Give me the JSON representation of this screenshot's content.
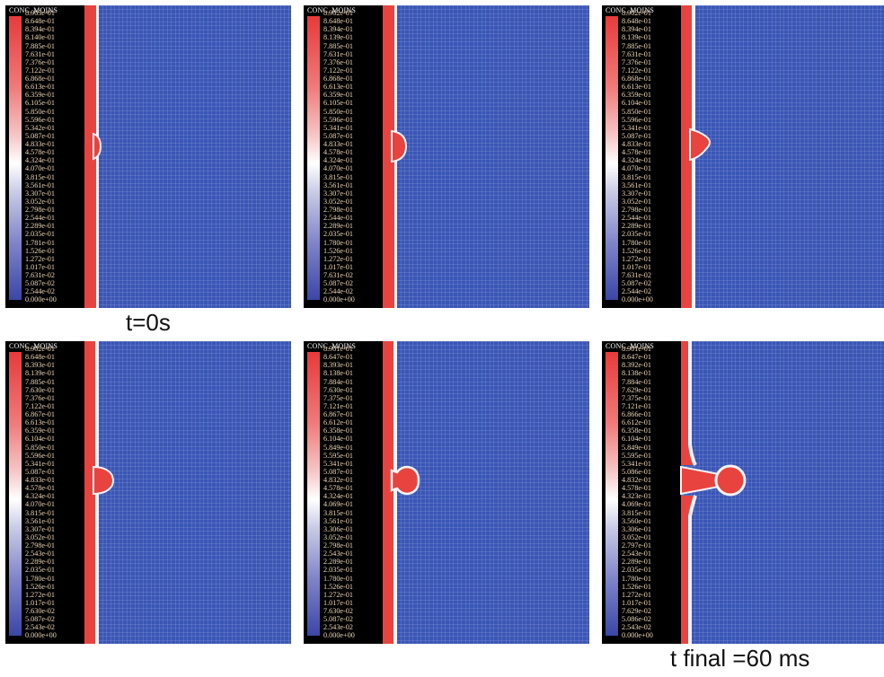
{
  "captions": {
    "start": "t=0s",
    "end": "t final =60 ms"
  },
  "colors": {
    "field_blue": "#3a56b5",
    "front_red": "#e8433e",
    "grid_line": "#ffffff",
    "legend_bg": "#000000",
    "tick_text": "#f0d8b8"
  },
  "panels": [
    {
      "title": "CONC_MOINS",
      "ticks": [
        "8.903e-01",
        "8.648e-01",
        "8.394e-01",
        "8.140e-01",
        "7.885e-01",
        "7.631e-01",
        "7.376e-01",
        "7.122e-01",
        "6.868e-01",
        "6.613e-01",
        "6.359e-01",
        "6.105e-01",
        "5.850e-01",
        "5.596e-01",
        "5.342e-01",
        "5.087e-01",
        "4.833e-01",
        "4.578e-01",
        "4.324e-01",
        "4.070e-01",
        "3.815e-01",
        "3.561e-01",
        "3.307e-01",
        "3.052e-01",
        "2.798e-01",
        "2.544e-01",
        "2.289e-01",
        "2.035e-01",
        "1.781e-01",
        "1.526e-01",
        "1.272e-01",
        "1.017e-01",
        "7.631e-02",
        "5.087e-02",
        "2.544e-02",
        "0.000e+00"
      ]
    },
    {
      "title": "CONC_MOINS",
      "ticks": [
        "8.902e-01",
        "8.648e-01",
        "8.394e-01",
        "8.139e-01",
        "7.885e-01",
        "7.631e-01",
        "7.376e-01",
        "7.122e-01",
        "6.868e-01",
        "6.613e-01",
        "6.359e-01",
        "6.105e-01",
        "5.850e-01",
        "5.596e-01",
        "5.341e-01",
        "5.087e-01",
        "4.833e-01",
        "4.578e-01",
        "4.324e-01",
        "4.070e-01",
        "3.815e-01",
        "3.561e-01",
        "3.307e-01",
        "3.052e-01",
        "2.798e-01",
        "2.544e-01",
        "2.289e-01",
        "2.035e-01",
        "1.780e-01",
        "1.526e-01",
        "1.272e-01",
        "1.017e-01",
        "7.631e-02",
        "5.087e-02",
        "2.544e-02",
        "0.000e+00"
      ]
    },
    {
      "title": "CONC_MOINS",
      "ticks": [
        "8.902e-01",
        "8.648e-01",
        "8.394e-01",
        "8.139e-01",
        "7.885e-01",
        "7.631e-01",
        "7.376e-01",
        "7.122e-01",
        "6.868e-01",
        "6.613e-01",
        "6.359e-01",
        "6.104e-01",
        "5.850e-01",
        "5.596e-01",
        "5.341e-01",
        "5.087e-01",
        "4.833e-01",
        "4.578e-01",
        "4.324e-01",
        "4.070e-01",
        "3.815e-01",
        "3.561e-01",
        "3.307e-01",
        "3.052e-01",
        "2.798e-01",
        "2.544e-01",
        "2.289e-01",
        "2.035e-01",
        "1.780e-01",
        "1.526e-01",
        "1.272e-01",
        "1.017e-01",
        "7.631e-02",
        "5.087e-02",
        "2.544e-02",
        "0.000e+00"
      ]
    },
    {
      "title": "CONC_MOINS",
      "ticks": [
        "8.902e-01",
        "8.648e-01",
        "8.393e-01",
        "8.139e-01",
        "7.885e-01",
        "7.630e-01",
        "7.376e-01",
        "7.122e-01",
        "6.867e-01",
        "6.613e-01",
        "6.359e-01",
        "6.104e-01",
        "5.850e-01",
        "5.596e-01",
        "5.341e-01",
        "5.087e-01",
        "4.833e-01",
        "4.578e-01",
        "4.324e-01",
        "4.070e-01",
        "3.815e-01",
        "3.561e-01",
        "3.307e-01",
        "3.052e-01",
        "2.798e-01",
        "2.543e-01",
        "2.289e-01",
        "2.035e-01",
        "1.780e-01",
        "1.526e-01",
        "1.272e-01",
        "1.017e-01",
        "7.630e-02",
        "5.087e-02",
        "2.543e-02",
        "0.000e+00"
      ]
    },
    {
      "title": "CONC_MOINS",
      "ticks": [
        "8.901e-01",
        "8.647e-01",
        "8.393e-01",
        "8.138e-01",
        "7.884e-01",
        "7.630e-01",
        "7.375e-01",
        "7.121e-01",
        "6.867e-01",
        "6.612e-01",
        "6.358e-01",
        "6.104e-01",
        "5.849e-01",
        "5.595e-01",
        "5.341e-01",
        "5.087e-01",
        "4.832e-01",
        "4.578e-01",
        "4.324e-01",
        "4.069e-01",
        "3.815e-01",
        "3.561e-01",
        "3.306e-01",
        "3.052e-01",
        "2.798e-01",
        "2.543e-01",
        "2.289e-01",
        "2.035e-01",
        "1.780e-01",
        "1.526e-01",
        "1.272e-01",
        "1.017e-01",
        "7.630e-02",
        "5.087e-02",
        "2.543e-02",
        "0.000e+00"
      ]
    },
    {
      "title": "CONC_MOINS",
      "ticks": [
        "8.901e-01",
        "8.647e-01",
        "8.392e-01",
        "8.138e-01",
        "7.884e-01",
        "7.629e-01",
        "7.375e-01",
        "7.121e-01",
        "6.866e-01",
        "6.612e-01",
        "6.358e-01",
        "6.104e-01",
        "5.849e-01",
        "5.595e-01",
        "5.341e-01",
        "5.086e-01",
        "4.832e-01",
        "4.578e-01",
        "4.323e-01",
        "4.069e-01",
        "3.815e-01",
        "3.560e-01",
        "3.306e-01",
        "3.052e-01",
        "2.797e-01",
        "2.543e-01",
        "2.289e-01",
        "2.035e-01",
        "1.780e-01",
        "1.526e-01",
        "1.272e-01",
        "1.017e-01",
        "7.629e-02",
        "5.086e-02",
        "2.543e-02",
        "0.000e+00"
      ]
    }
  ]
}
